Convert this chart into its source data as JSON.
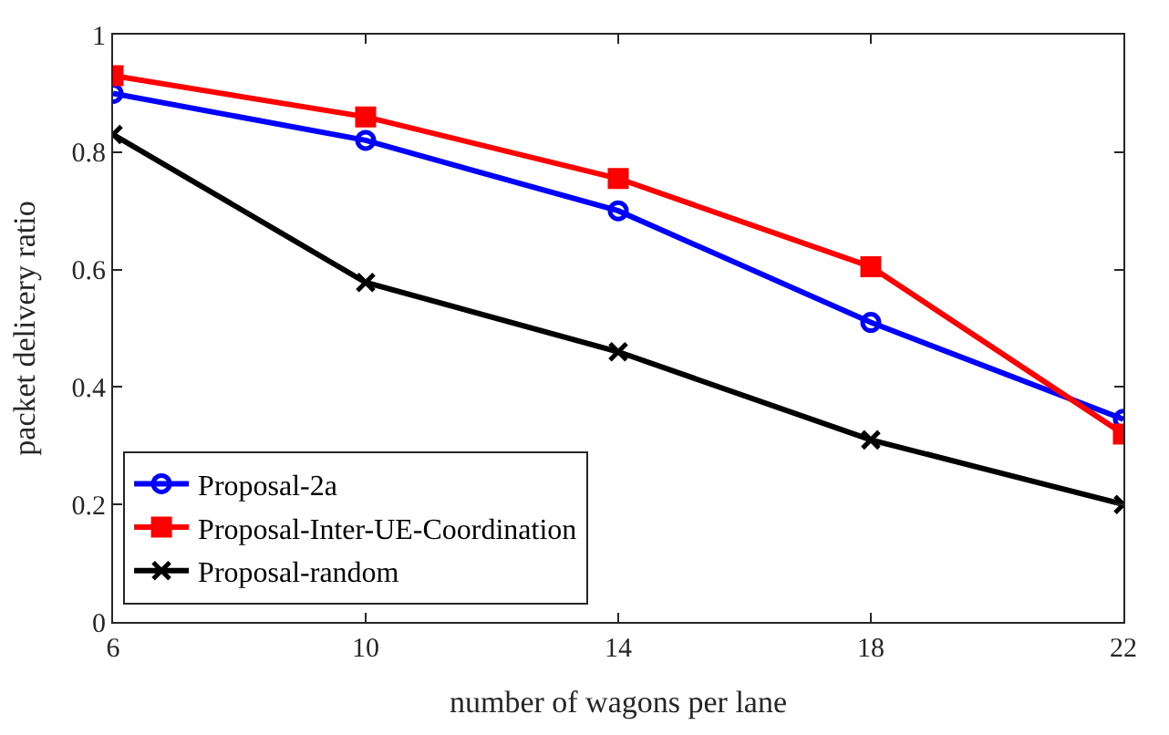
{
  "chart_data": {
    "type": "line",
    "xlabel": "number of wagons per lane",
    "ylabel": "packet delivery ratio",
    "x": [
      6,
      10,
      14,
      18,
      22
    ],
    "series": [
      {
        "name": "Proposal-2a",
        "color": "#0000ff",
        "marker": "circle",
        "values": [
          0.9,
          0.82,
          0.7,
          0.51,
          0.345
        ]
      },
      {
        "name": "Proposal-Inter-UE-Coordination",
        "color": "#ff0000",
        "marker": "square",
        "values": [
          0.93,
          0.86,
          0.755,
          0.605,
          0.32
        ]
      },
      {
        "name": "Proposal-random",
        "color": "#000000",
        "marker": "cross",
        "values": [
          0.83,
          0.578,
          0.46,
          0.31,
          0.2
        ]
      }
    ],
    "xlim": [
      6,
      22
    ],
    "xticks": [
      6,
      10,
      14,
      18,
      22
    ],
    "ylim": [
      0,
      1
    ],
    "yticks": [
      0,
      0.2,
      0.4,
      0.6,
      0.8,
      1
    ],
    "legend": "bottom left",
    "line_style": "solid"
  }
}
